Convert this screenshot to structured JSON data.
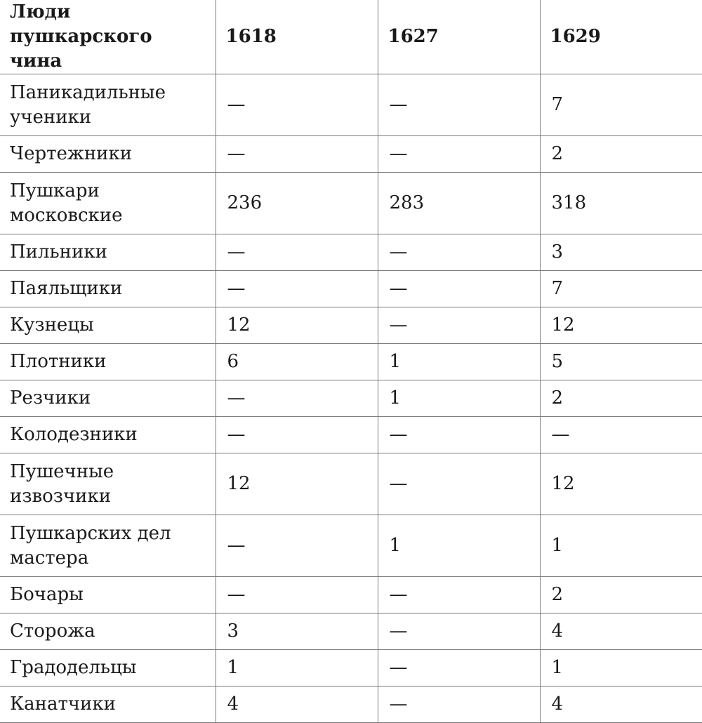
{
  "table": {
    "headers": [
      "Люди пушкарского чина",
      "1618",
      "1627",
      "1629"
    ],
    "rows": [
      [
        "Паникадильные ученики",
        "—",
        "—",
        "7"
      ],
      [
        "Чертежники",
        "—",
        "—",
        "2"
      ],
      [
        "Пушкари московские",
        "236",
        "283",
        "318"
      ],
      [
        "Пильники",
        "—",
        "—",
        "3"
      ],
      [
        "Паяльщики",
        "—",
        "—",
        "7"
      ],
      [
        "Кузнецы",
        "12",
        "—",
        "12"
      ],
      [
        "Плотники",
        "6",
        "1",
        "5"
      ],
      [
        "Резчики",
        "—",
        "1",
        "2"
      ],
      [
        "Колодезники",
        "—",
        "—",
        "—"
      ],
      [
        "Пушечные извозчики",
        "12",
        "—",
        "12"
      ],
      [
        "Пушкарских дел мастера",
        "—",
        "1",
        "1"
      ],
      [
        "Бочары",
        "—",
        "—",
        "2"
      ],
      [
        "Сторожа",
        "3",
        "—",
        "4"
      ],
      [
        "Градодельцы",
        "1",
        "—",
        "1"
      ],
      [
        "Канатчики",
        "4",
        "—",
        "4"
      ]
    ]
  }
}
